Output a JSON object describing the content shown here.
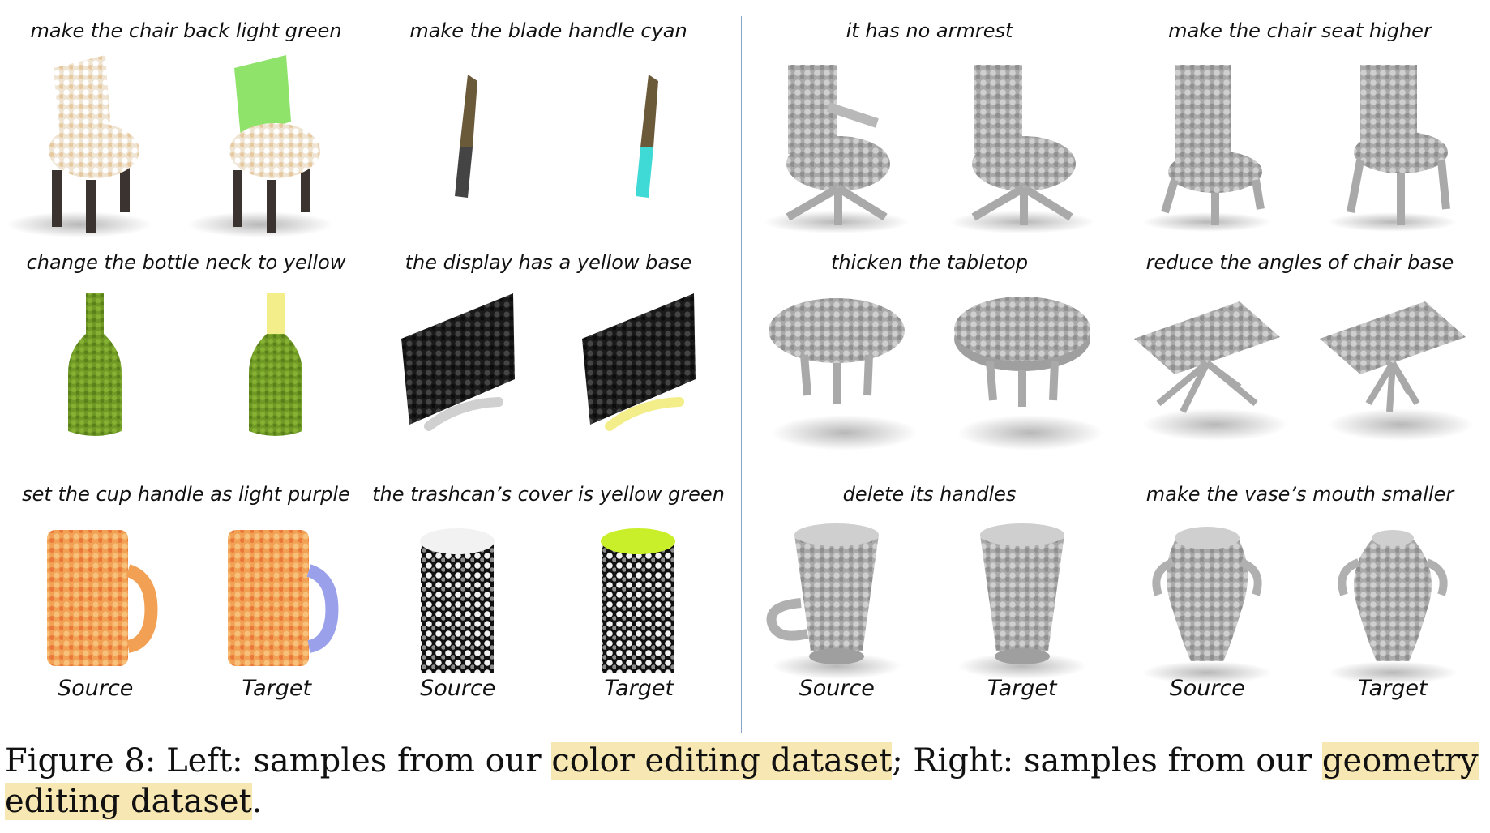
{
  "left": {
    "cells": [
      {
        "prompt": "make the chair back light green"
      },
      {
        "prompt": "make the blade handle cyan"
      },
      {
        "prompt": "change the bottle neck to yellow"
      },
      {
        "prompt": "the display has a yellow base"
      },
      {
        "prompt": "set the cup handle as light purple",
        "source_label": "Source",
        "target_label": "Target"
      },
      {
        "prompt": "the trashcan’s cover is yellow green",
        "source_label": "Source",
        "target_label": "Target"
      }
    ]
  },
  "right": {
    "cells": [
      {
        "prompt": "it has no armrest"
      },
      {
        "prompt": "make the chair seat higher"
      },
      {
        "prompt": "thicken the tabletop"
      },
      {
        "prompt": "reduce the angles of chair base"
      },
      {
        "prompt": "delete its handles",
        "source_label": "Source",
        "target_label": "Target"
      },
      {
        "prompt": "make the vase’s mouth smaller",
        "source_label": "Source",
        "target_label": "Target"
      }
    ]
  },
  "caption": {
    "prefix": "Figure 8: Left: samples from our ",
    "hl1": "color editing dataset",
    "middle": "; Right: samples from our ",
    "hl2": "geometry editing dataset",
    "suffix": "."
  },
  "colors": {
    "light_green": "#8fe36a",
    "cyan": "#3fd9d6",
    "yellow": "#f3ee8a",
    "light_purple": "#9aa0ea",
    "yellow_green": "#c9ef2a",
    "gray_cloud": "#b8b8b8"
  }
}
